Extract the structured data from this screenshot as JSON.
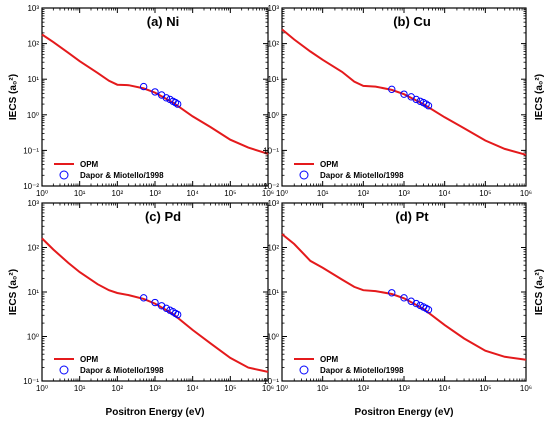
{
  "colors": {
    "opm_line": "#e41a1c",
    "exp_marker": "#0000ff",
    "axis": "#000000"
  },
  "shared": {
    "xlabel": "Positron Energy (eV)",
    "x_tick_labels": [
      "10⁰",
      "10¹",
      "10²",
      "10³",
      "10⁴",
      "10⁵",
      "10⁶"
    ]
  },
  "chart_data": [
    {
      "type": "line",
      "title": "(a) Ni",
      "xlabel": "",
      "ylabel": "IECS (a₀²)",
      "x_scale": "log",
      "y_scale": "log",
      "xlim": [
        1,
        1000000
      ],
      "ylim": [
        0.01,
        1000
      ],
      "y_ticks": [
        "10⁻²",
        "10⁻¹",
        "10⁰",
        "10¹",
        "10²",
        "10³"
      ],
      "legend": [
        "OPM",
        "Dapor & Miotello/1998"
      ],
      "legend_position": "bottom-left",
      "series": [
        {
          "name": "OPM",
          "style": "line",
          "x": [
            1,
            2,
            5,
            10,
            30,
            60,
            100,
            200,
            500,
            1000,
            3000,
            10000,
            30000,
            100000,
            300000,
            1000000
          ],
          "y": [
            180,
            110,
            55,
            32,
            15,
            9,
            7,
            6.8,
            5.5,
            4.2,
            2.2,
            0.9,
            0.45,
            0.2,
            0.12,
            0.08
          ]
        },
        {
          "name": "Dapor & Miotello/1998",
          "style": "marker",
          "x": [
            500,
            1000,
            1500,
            2000,
            2500,
            3000,
            3500,
            4000
          ],
          "y": [
            6.2,
            4.4,
            3.6,
            3.0,
            2.7,
            2.4,
            2.2,
            2.0
          ]
        }
      ]
    },
    {
      "type": "line",
      "title": "(b) Cu",
      "xlabel": "",
      "ylabel": "IECS (a₀²)",
      "x_scale": "log",
      "y_scale": "log",
      "xlim": [
        1,
        1000000
      ],
      "ylim": [
        0.01,
        1000
      ],
      "y_ticks": [
        "10⁻²",
        "10⁻¹",
        "10⁰",
        "10¹",
        "10²",
        "10³"
      ],
      "legend": [
        "OPM",
        "Dapor & Miotello/1998"
      ],
      "legend_position": "bottom-left",
      "series": [
        {
          "name": "OPM",
          "style": "line",
          "x": [
            1,
            2,
            5,
            10,
            30,
            60,
            100,
            200,
            500,
            1000,
            3000,
            10000,
            30000,
            100000,
            300000,
            1000000
          ],
          "y": [
            250,
            130,
            60,
            35,
            16,
            8.5,
            6.5,
            6.2,
            5.0,
            3.8,
            2.0,
            0.85,
            0.42,
            0.19,
            0.11,
            0.075
          ]
        },
        {
          "name": "Dapor & Miotello/1998",
          "style": "marker",
          "x": [
            500,
            1000,
            1500,
            2000,
            2500,
            3000,
            3500,
            4000
          ],
          "y": [
            5.2,
            3.8,
            3.2,
            2.7,
            2.4,
            2.2,
            2.0,
            1.8
          ]
        }
      ]
    },
    {
      "type": "line",
      "title": "(c) Pd",
      "xlabel": "Positron Energy (eV)",
      "ylabel": "IECS (a₀²)",
      "x_scale": "log",
      "y_scale": "log",
      "xlim": [
        1,
        1000000
      ],
      "ylim": [
        0.1,
        1000
      ],
      "y_ticks": [
        "10⁻¹",
        "10⁰",
        "10¹",
        "10²",
        "10³"
      ],
      "legend": [
        "OPM",
        "Dapor & Miotello/1998"
      ],
      "legend_position": "bottom-left",
      "series": [
        {
          "name": "OPM",
          "style": "line",
          "x": [
            1,
            2,
            5,
            10,
            30,
            60,
            100,
            200,
            500,
            1000,
            3000,
            10000,
            30000,
            100000,
            300000,
            1000000
          ],
          "y": [
            160,
            90,
            45,
            28,
            15,
            11,
            9.5,
            8.5,
            7.0,
            5.5,
            3.2,
            1.4,
            0.7,
            0.33,
            0.2,
            0.16
          ]
        },
        {
          "name": "Dapor & Miotello/1998",
          "style": "marker",
          "x": [
            500,
            1000,
            1500,
            2000,
            2500,
            3000,
            3500,
            4000
          ],
          "y": [
            7.4,
            5.8,
            4.9,
            4.3,
            3.9,
            3.6,
            3.3,
            3.1
          ]
        }
      ]
    },
    {
      "type": "line",
      "title": "(d) Pt",
      "xlabel": "Positron Energy (eV)",
      "ylabel": "IECS (a₀²)",
      "x_scale": "log",
      "y_scale": "log",
      "xlim": [
        1,
        1000000
      ],
      "ylim": [
        0.1,
        1000
      ],
      "y_ticks": [
        "10⁻¹",
        "10⁰",
        "10¹",
        "10²",
        "10³"
      ],
      "legend": [
        "OPM",
        "Dapor & Miotello/1998"
      ],
      "legend_position": "bottom-left",
      "series": [
        {
          "name": "OPM",
          "style": "line",
          "x": [
            1,
            2,
            5,
            10,
            30,
            60,
            100,
            200,
            500,
            1000,
            3000,
            10000,
            30000,
            100000,
            300000,
            1000000
          ],
          "y": [
            200,
            120,
            50,
            35,
            19,
            13,
            11,
            10.5,
            9.0,
            7.2,
            4.2,
            1.8,
            0.9,
            0.48,
            0.35,
            0.3
          ]
        },
        {
          "name": "Dapor & Miotello/1998",
          "style": "marker",
          "x": [
            500,
            1000,
            1500,
            2000,
            2500,
            3000,
            3500,
            4000
          ],
          "y": [
            9.6,
            7.4,
            6.2,
            5.5,
            5.0,
            4.6,
            4.3,
            4.0
          ]
        }
      ]
    }
  ]
}
